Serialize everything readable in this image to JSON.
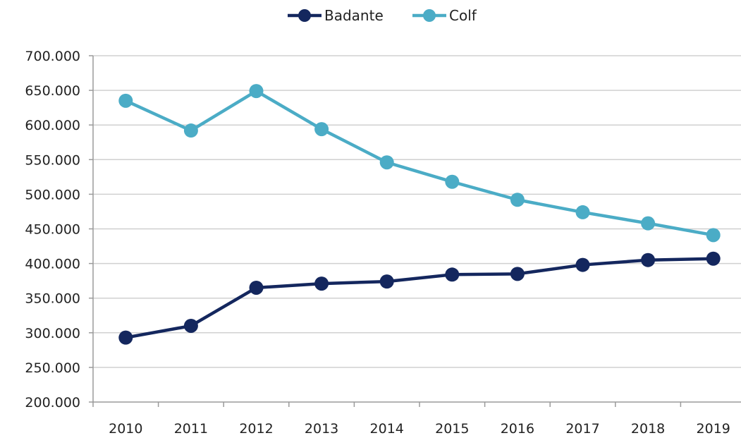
{
  "chart_data": {
    "type": "line",
    "categories": [
      "2010",
      "2011",
      "2012",
      "2013",
      "2014",
      "2015",
      "2016",
      "2017",
      "2018",
      "2019"
    ],
    "ylim": [
      200000,
      700000
    ],
    "ytick_values": [
      200000,
      250000,
      300000,
      350000,
      400000,
      450000,
      500000,
      550000,
      600000,
      650000,
      700000
    ],
    "ytick_labels": [
      "200.000",
      "250.000",
      "300.000",
      "350.000",
      "400.000",
      "450.000",
      "500.000",
      "550.000",
      "600.000",
      "650.000",
      "700.000"
    ],
    "grid": true,
    "legend_position": "top-center",
    "series": [
      {
        "name": "Badante",
        "color": "#14275e",
        "values": [
          293000,
          310000,
          365000,
          371000,
          374000,
          384000,
          385000,
          398000,
          405000,
          407000
        ]
      },
      {
        "name": "Colf",
        "color": "#4bacc6",
        "values": [
          635000,
          592000,
          649000,
          594000,
          546000,
          518000,
          492000,
          474000,
          458000,
          441000
        ]
      }
    ]
  }
}
